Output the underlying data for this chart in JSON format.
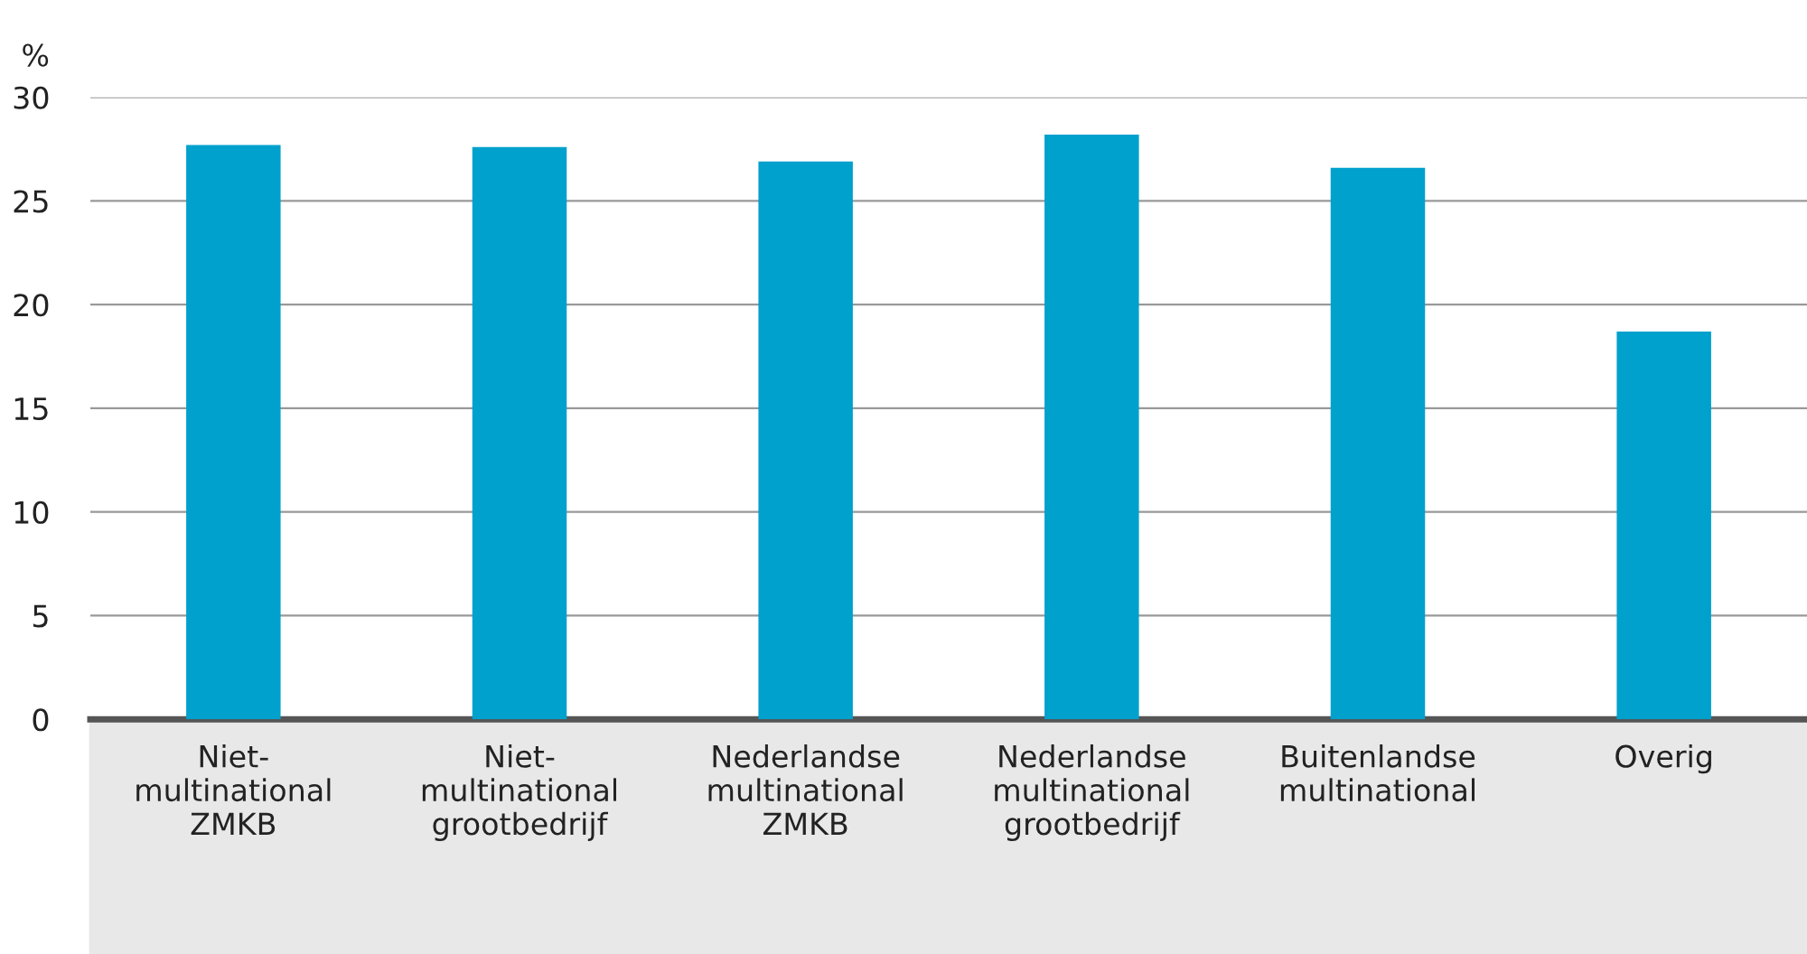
{
  "chart_data": {
    "type": "bar",
    "ylabel": "%",
    "categories": [
      "Niet-\nmultinational\nZMKB",
      "Niet-\nmultinational\ngrootbedrijf",
      "Nederlandse\nmultinational\nZMKB",
      "Nederlandse\nmultinational\ngrootbedrijf",
      "Buitenlandse\nmultinational",
      "Overig"
    ],
    "values": [
      27.7,
      27.6,
      26.9,
      28.2,
      26.6,
      18.7
    ],
    "color": "#00a1cd",
    "ylim": [
      0,
      30
    ],
    "yticks": [
      0,
      5,
      10,
      15,
      20,
      25,
      30
    ],
    "grid": "y",
    "legend": false
  }
}
